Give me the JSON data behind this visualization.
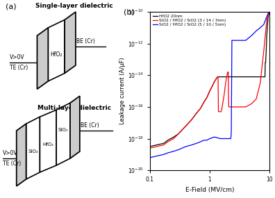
{
  "panel_a": {
    "title_single": "Single-layer dielectric",
    "title_multi": "Multi-layer dielectric",
    "label_te": "TE (Cr)",
    "label_be": "BE (Cr)",
    "label_v": "V>0V",
    "label_hfo2": "HfO₂",
    "label_sio2": "SiO₂"
  },
  "panel_b": {
    "xlabel": "E-Field (MV/cm)",
    "ylabel": "Leakage current (A/μF)",
    "legend": [
      "HfO2 20nm",
      "SiO2 / HfO2 / SiO2 (3 / 14 / 3nm)",
      "SiO2 / HfO2 / SiO2 (5 / 10 / 5nm)"
    ],
    "line_colors": [
      "black",
      "red",
      "blue"
    ],
    "black_x": [
      0.1,
      0.13,
      0.17,
      0.2,
      0.25,
      0.3,
      0.4,
      0.5,
      0.6,
      0.7,
      0.8,
      0.9,
      1.0,
      1.1,
      1.2,
      1.3,
      1.35,
      1.4,
      1.45,
      1.5,
      1.55,
      1.6,
      1.8,
      2.0,
      2.5,
      3.0,
      4.0,
      5.0,
      6.0,
      7.0,
      8.0,
      8.4,
      8.5,
      8.6,
      8.8,
      9.0,
      9.5,
      10.0
    ],
    "black_y": [
      -18.5,
      -18.4,
      -18.3,
      -18.1,
      -17.9,
      -17.7,
      -17.2,
      -16.8,
      -16.4,
      -16.1,
      -15.7,
      -15.4,
      -15.0,
      -14.7,
      -14.4,
      -14.2,
      -14.1,
      -14.1,
      -14.1,
      -14.1,
      -14.1,
      -14.1,
      -14.1,
      -14.1,
      -14.1,
      -14.1,
      -14.1,
      -14.1,
      -14.1,
      -14.1,
      -14.1,
      -14.1,
      -13.2,
      -13.2,
      -12.5,
      -11.5,
      -10.3,
      -10.0
    ],
    "red_x": [
      0.1,
      0.13,
      0.17,
      0.2,
      0.25,
      0.3,
      0.4,
      0.5,
      0.6,
      0.7,
      0.8,
      0.9,
      1.0,
      1.1,
      1.2,
      1.3,
      1.35,
      1.38,
      1.4,
      1.45,
      1.5,
      1.55,
      1.6,
      1.65,
      1.7,
      1.75,
      1.8,
      1.9,
      2.0,
      2.05,
      2.08,
      2.1,
      2.2,
      2.5,
      3.0,
      4.0,
      5.0,
      6.0,
      7.0,
      8.0,
      8.5,
      9.0,
      9.5,
      10.0
    ],
    "red_y": [
      -18.6,
      -18.5,
      -18.4,
      -18.2,
      -18.0,
      -17.7,
      -17.2,
      -16.8,
      -16.4,
      -16.1,
      -15.7,
      -15.4,
      -15.0,
      -14.7,
      -14.4,
      -14.2,
      -14.1,
      -14.1,
      -16.3,
      -16.3,
      -16.3,
      -16.3,
      -16.1,
      -15.8,
      -15.5,
      -15.2,
      -14.8,
      -14.2,
      -13.8,
      -13.8,
      -16.0,
      -16.0,
      -16.0,
      -16.0,
      -16.0,
      -16.0,
      -15.8,
      -15.5,
      -14.5,
      -12.5,
      -11.5,
      -10.5,
      -10.2,
      -10.0
    ],
    "blue_x": [
      0.1,
      0.13,
      0.17,
      0.2,
      0.25,
      0.3,
      0.4,
      0.5,
      0.6,
      0.7,
      0.8,
      0.9,
      1.0,
      1.2,
      1.5,
      1.8,
      2.0,
      2.1,
      2.2,
      2.25,
      2.28,
      2.3,
      2.35,
      2.4,
      2.5,
      3.0,
      4.0,
      5.0,
      6.0,
      7.0,
      8.0,
      9.0,
      9.5,
      10.0
    ],
    "blue_y": [
      -19.2,
      -19.1,
      -19.0,
      -18.9,
      -18.8,
      -18.7,
      -18.5,
      -18.4,
      -18.3,
      -18.2,
      -18.1,
      -18.1,
      -18.0,
      -17.9,
      -18.0,
      -18.0,
      -18.0,
      -18.0,
      -18.0,
      -18.0,
      -17.8,
      -17.5,
      -11.8,
      -11.8,
      -11.8,
      -11.8,
      -11.8,
      -11.5,
      -11.2,
      -11.0,
      -10.8,
      -10.3,
      -10.1,
      -10.0
    ]
  }
}
